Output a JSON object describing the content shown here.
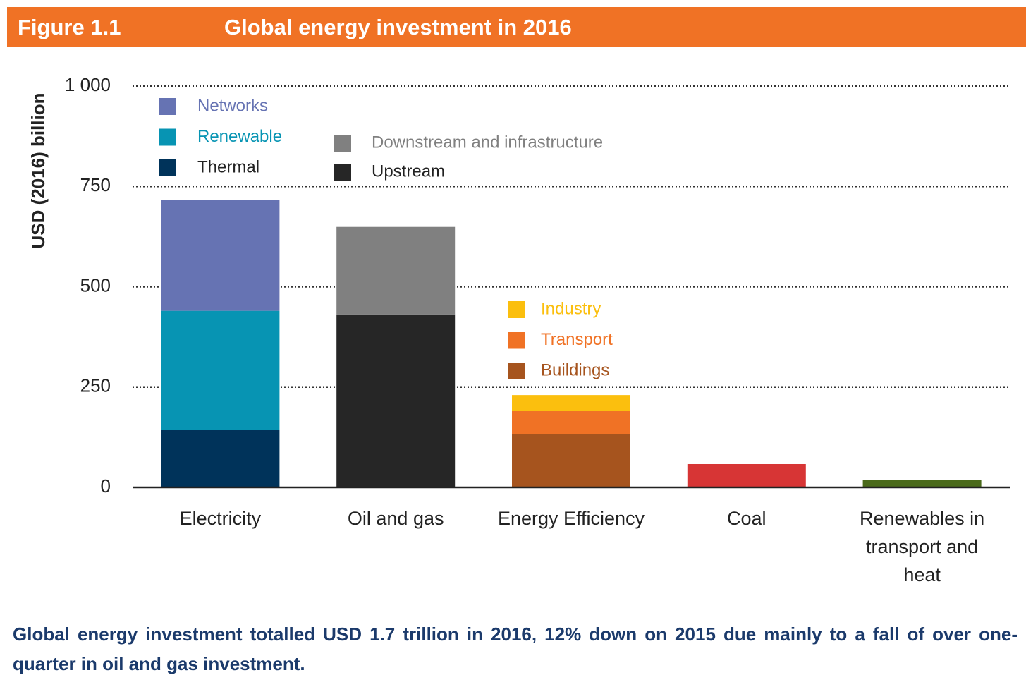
{
  "figure_label": "Figure 1.1",
  "chart_data": {
    "type": "stacked-bar",
    "title": "Global energy investment in 2016",
    "y_axis_label": "USD (2016) billion",
    "ylim": [
      0,
      1000
    ],
    "yticks": [
      0,
      250,
      500,
      750,
      {
        "value": 1000,
        "label": "1 000"
      }
    ],
    "grid": true,
    "categories": [
      "Electricity",
      "Oil and gas",
      "Energy Efficiency",
      "Coal",
      "Renewables in transport and heat"
    ],
    "bars": [
      {
        "segments": [
          {
            "name": "Thermal",
            "color": "#00335a",
            "value": 143
          },
          {
            "name": "Renewable",
            "color": "#0794b3",
            "value": 297
          },
          {
            "name": "Networks",
            "color": "#6673b3",
            "value": 277
          }
        ]
      },
      {
        "segments": [
          {
            "name": "Upstream",
            "color": "#262626",
            "value": 431
          },
          {
            "name": "Downstream and infrastructure",
            "color": "#808080",
            "value": 218
          }
        ]
      },
      {
        "segments": [
          {
            "name": "Buildings",
            "color": "#a6541e",
            "value": 132
          },
          {
            "name": "Transport",
            "color": "#f07225",
            "value": 58
          },
          {
            "name": "Industry",
            "color": "#fbbf0e",
            "value": 40
          }
        ]
      },
      {
        "segments": [
          {
            "color": "#d73535",
            "value": 58
          }
        ]
      },
      {
        "segments": [
          {
            "color": "#4a6a1a",
            "value": 18
          }
        ]
      }
    ]
  },
  "caption": "Global energy investment totalled USD 1.7 trillion in 2016, 12% down on 2015 due mainly to a fall of over one-quarter in oil and gas investment."
}
